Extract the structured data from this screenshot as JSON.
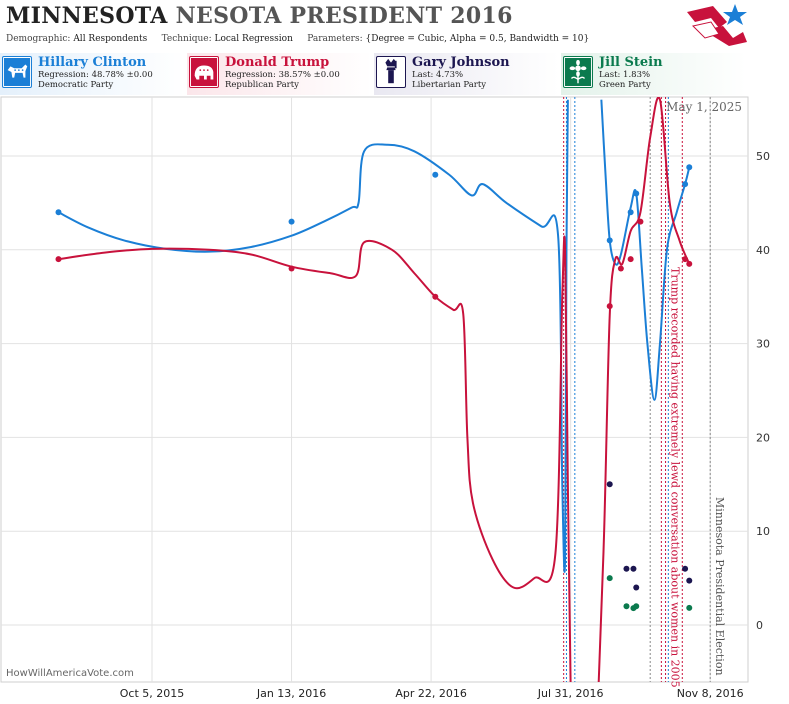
{
  "header": {
    "title_bold": "MINNESOTA",
    "title_rest": "NESOTA PRESIDENT 2016",
    "demographic_label": "Demographic:",
    "demographic_value": "All Respondents",
    "technique_label": "Technique:",
    "technique_value": "Local Regression",
    "parameters_label": "Parameters:",
    "parameters_value": "{Degree = Cubic, Alpha = 0.5, Bandwidth = 10}"
  },
  "candidates": [
    {
      "name": "Hillary Clinton",
      "line1": "Regression: 48.78% ±0.00",
      "line2": "Democratic Party",
      "color": "#1b7fd6",
      "icon": "donkey-icon"
    },
    {
      "name": "Donald Trump",
      "line1": "Regression: 38.57% ±0.00",
      "line2": "Republican Party",
      "color": "#c8123c",
      "icon": "elephant-icon"
    },
    {
      "name": "Gary Johnson",
      "line1": "Last: 4.73%",
      "line2": "Libertarian Party",
      "color": "#1c1650",
      "icon": "liberty-torch-icon"
    },
    {
      "name": "Jill Stein",
      "line1": "Last: 1.83%",
      "line2": "Green Party",
      "color": "#0b7a4e",
      "icon": "sunflower-icon"
    }
  ],
  "watermark": "HowWillAmericaVote.com",
  "colors": {
    "clinton": "#1b7fd6",
    "trump": "#c8123c",
    "johnson": "#1c1650",
    "stein": "#0b7a4e",
    "grid": "#e2e2e2"
  },
  "chart_data": {
    "type": "line",
    "ylim": [
      -6.5,
      56
    ],
    "y_ticks": [
      0,
      10,
      20,
      30,
      40,
      50
    ],
    "x_ticks": [
      {
        "date": "2015-10-05",
        "label": "Oct 5, 2015"
      },
      {
        "date": "2016-01-13",
        "label": "Jan 13, 2016"
      },
      {
        "date": "2016-04-22",
        "label": "Apr 22, 2016"
      },
      {
        "date": "2016-07-31",
        "label": "Jul 31, 2016"
      },
      {
        "date": "2016-11-08",
        "label": "Nov 8, 2016"
      }
    ],
    "xlim": [
      "2015-07-15",
      "2016-11-20"
    ],
    "grid": true,
    "series": [
      {
        "name": "Hillary Clinton",
        "color": "#1b7fd6",
        "line": [
          {
            "date": "2015-07-30",
            "v": 44
          },
          {
            "date": "2015-08-20",
            "v": 42.4
          },
          {
            "date": "2015-09-15",
            "v": 41
          },
          {
            "date": "2015-10-15",
            "v": 40.1
          },
          {
            "date": "2015-11-15",
            "v": 39.8
          },
          {
            "date": "2015-12-15",
            "v": 40.3
          },
          {
            "date": "2016-01-13",
            "v": 41.5
          },
          {
            "date": "2016-02-05",
            "v": 43
          },
          {
            "date": "2016-02-25",
            "v": 44.5
          },
          {
            "date": "2016-03-01",
            "v": 45
          },
          {
            "date": "2016-03-05",
            "v": 50.5
          },
          {
            "date": "2016-03-22",
            "v": 51.2
          },
          {
            "date": "2016-04-10",
            "v": 50.5
          },
          {
            "date": "2016-05-05",
            "v": 48
          },
          {
            "date": "2016-05-21",
            "v": 45.8
          },
          {
            "date": "2016-05-29",
            "v": 47
          },
          {
            "date": "2016-06-15",
            "v": 45
          },
          {
            "date": "2016-07-10",
            "v": 42.5
          },
          {
            "date": "2016-07-22",
            "v": 41.5
          },
          {
            "date": "2016-07-25",
            "v": 15
          },
          {
            "date": "2016-07-27",
            "v": 7
          },
          {
            "date": "2016-07-28",
            "v": 40
          },
          {
            "date": "2016-07-29",
            "v": 56
          }
        ],
        "line2": [
          {
            "date": "2016-08-22",
            "v": 56
          },
          {
            "date": "2016-08-25",
            "v": 48
          },
          {
            "date": "2016-08-28",
            "v": 41
          },
          {
            "date": "2016-09-01",
            "v": 38.5
          },
          {
            "date": "2016-09-05",
            "v": 39.5
          },
          {
            "date": "2016-09-12",
            "v": 44.5
          },
          {
            "date": "2016-09-16",
            "v": 46
          },
          {
            "date": "2016-09-20",
            "v": 38
          },
          {
            "date": "2016-09-24",
            "v": 30
          },
          {
            "date": "2016-09-29",
            "v": 24
          },
          {
            "date": "2016-10-03",
            "v": 30
          },
          {
            "date": "2016-10-08",
            "v": 40
          },
          {
            "date": "2016-10-15",
            "v": 44
          },
          {
            "date": "2016-10-21",
            "v": 47
          },
          {
            "date": "2016-10-24",
            "v": 48.8
          }
        ],
        "points": [
          {
            "date": "2015-07-30",
            "v": 44
          },
          {
            "date": "2016-01-13",
            "v": 43
          },
          {
            "date": "2016-04-25",
            "v": 48
          },
          {
            "date": "2016-08-28",
            "v": 41
          },
          {
            "date": "2016-09-12",
            "v": 44
          },
          {
            "date": "2016-09-16",
            "v": 46
          },
          {
            "date": "2016-10-21",
            "v": 47
          },
          {
            "date": "2016-10-24",
            "v": 48.8
          }
        ]
      },
      {
        "name": "Donald Trump",
        "color": "#c8123c",
        "line": [
          {
            "date": "2015-07-30",
            "v": 39
          },
          {
            "date": "2015-09-01",
            "v": 39.7
          },
          {
            "date": "2015-10-05",
            "v": 40.1
          },
          {
            "date": "2015-11-15",
            "v": 40
          },
          {
            "date": "2015-12-15",
            "v": 39.5
          },
          {
            "date": "2016-01-13",
            "v": 38.2
          },
          {
            "date": "2016-02-10",
            "v": 37.5
          },
          {
            "date": "2016-02-28",
            "v": 37.2
          },
          {
            "date": "2016-03-05",
            "v": 40.8
          },
          {
            "date": "2016-03-25",
            "v": 40
          },
          {
            "date": "2016-04-10",
            "v": 37.5
          },
          {
            "date": "2016-04-25",
            "v": 35
          },
          {
            "date": "2016-05-08",
            "v": 33.6
          },
          {
            "date": "2016-05-15",
            "v": 33.2
          },
          {
            "date": "2016-05-18",
            "v": 20
          },
          {
            "date": "2016-05-22",
            "v": 13
          },
          {
            "date": "2016-06-05",
            "v": 7
          },
          {
            "date": "2016-06-20",
            "v": 4
          },
          {
            "date": "2016-07-05",
            "v": 5
          },
          {
            "date": "2016-07-20",
            "v": 7.5
          },
          {
            "date": "2016-07-25",
            "v": 35
          },
          {
            "date": "2016-07-27",
            "v": 40
          },
          {
            "date": "2016-07-29",
            "v": 15
          },
          {
            "date": "2016-07-31",
            "v": -6.5
          }
        ],
        "line2": [
          {
            "date": "2016-08-20",
            "v": -6.5
          },
          {
            "date": "2016-08-24",
            "v": 10
          },
          {
            "date": "2016-08-28",
            "v": 33
          },
          {
            "date": "2016-09-01",
            "v": 39
          },
          {
            "date": "2016-09-06",
            "v": 38.5
          },
          {
            "date": "2016-09-12",
            "v": 42
          },
          {
            "date": "2016-09-19",
            "v": 44
          },
          {
            "date": "2016-09-26",
            "v": 52
          },
          {
            "date": "2016-10-03",
            "v": 56
          },
          {
            "date": "2016-10-10",
            "v": 45
          },
          {
            "date": "2016-10-17",
            "v": 41
          },
          {
            "date": "2016-10-24",
            "v": 38.5
          }
        ],
        "points": [
          {
            "date": "2015-07-30",
            "v": 39
          },
          {
            "date": "2016-01-13",
            "v": 38
          },
          {
            "date": "2016-04-25",
            "v": 35
          },
          {
            "date": "2016-08-28",
            "v": 34
          },
          {
            "date": "2016-09-05",
            "v": 38
          },
          {
            "date": "2016-09-12",
            "v": 39
          },
          {
            "date": "2016-09-19",
            "v": 43
          },
          {
            "date": "2016-10-21",
            "v": 39
          },
          {
            "date": "2016-10-24",
            "v": 38.5
          }
        ]
      },
      {
        "name": "Gary Johnson",
        "color": "#1c1650",
        "points": [
          {
            "date": "2016-08-28",
            "v": 15
          },
          {
            "date": "2016-09-09",
            "v": 6
          },
          {
            "date": "2016-09-14",
            "v": 6
          },
          {
            "date": "2016-09-16",
            "v": 4
          },
          {
            "date": "2016-10-21",
            "v": 6
          },
          {
            "date": "2016-10-24",
            "v": 4.73
          }
        ]
      },
      {
        "name": "Jill Stein",
        "color": "#0b7a4e",
        "points": [
          {
            "date": "2016-08-28",
            "v": 5
          },
          {
            "date": "2016-09-09",
            "v": 2
          },
          {
            "date": "2016-09-14",
            "v": 1.8
          },
          {
            "date": "2016-09-16",
            "v": 2
          },
          {
            "date": "2016-10-24",
            "v": 1.83
          }
        ]
      }
    ],
    "event_lines": [
      {
        "date": "2016-07-26",
        "color": "#c8123c"
      },
      {
        "date": "2016-07-28",
        "color": "#1b7fd6"
      },
      {
        "date": "2016-08-03",
        "color": "#1b7fd6"
      },
      {
        "date": "2016-09-26",
        "color": "#888888"
      },
      {
        "date": "2016-10-04",
        "color": "#c8123c"
      },
      {
        "date": "2016-10-07",
        "color": "#c8123c"
      },
      {
        "date": "2016-10-09",
        "color": "#1b7fd6"
      },
      {
        "date": "2016-10-19",
        "color": "#c8123c"
      },
      {
        "date": "2016-11-08",
        "color": "#888888"
      }
    ],
    "annotations": [
      {
        "text": "Trump recorded having extremely lewd conversation about women in 2005",
        "date": "2016-10-07",
        "color": "#c8123c"
      },
      {
        "text": "Minnesota Presidential Election",
        "date": "2016-11-08",
        "color": "#555555"
      },
      {
        "text": "May 1, 2025",
        "position": "top-right"
      }
    ]
  }
}
